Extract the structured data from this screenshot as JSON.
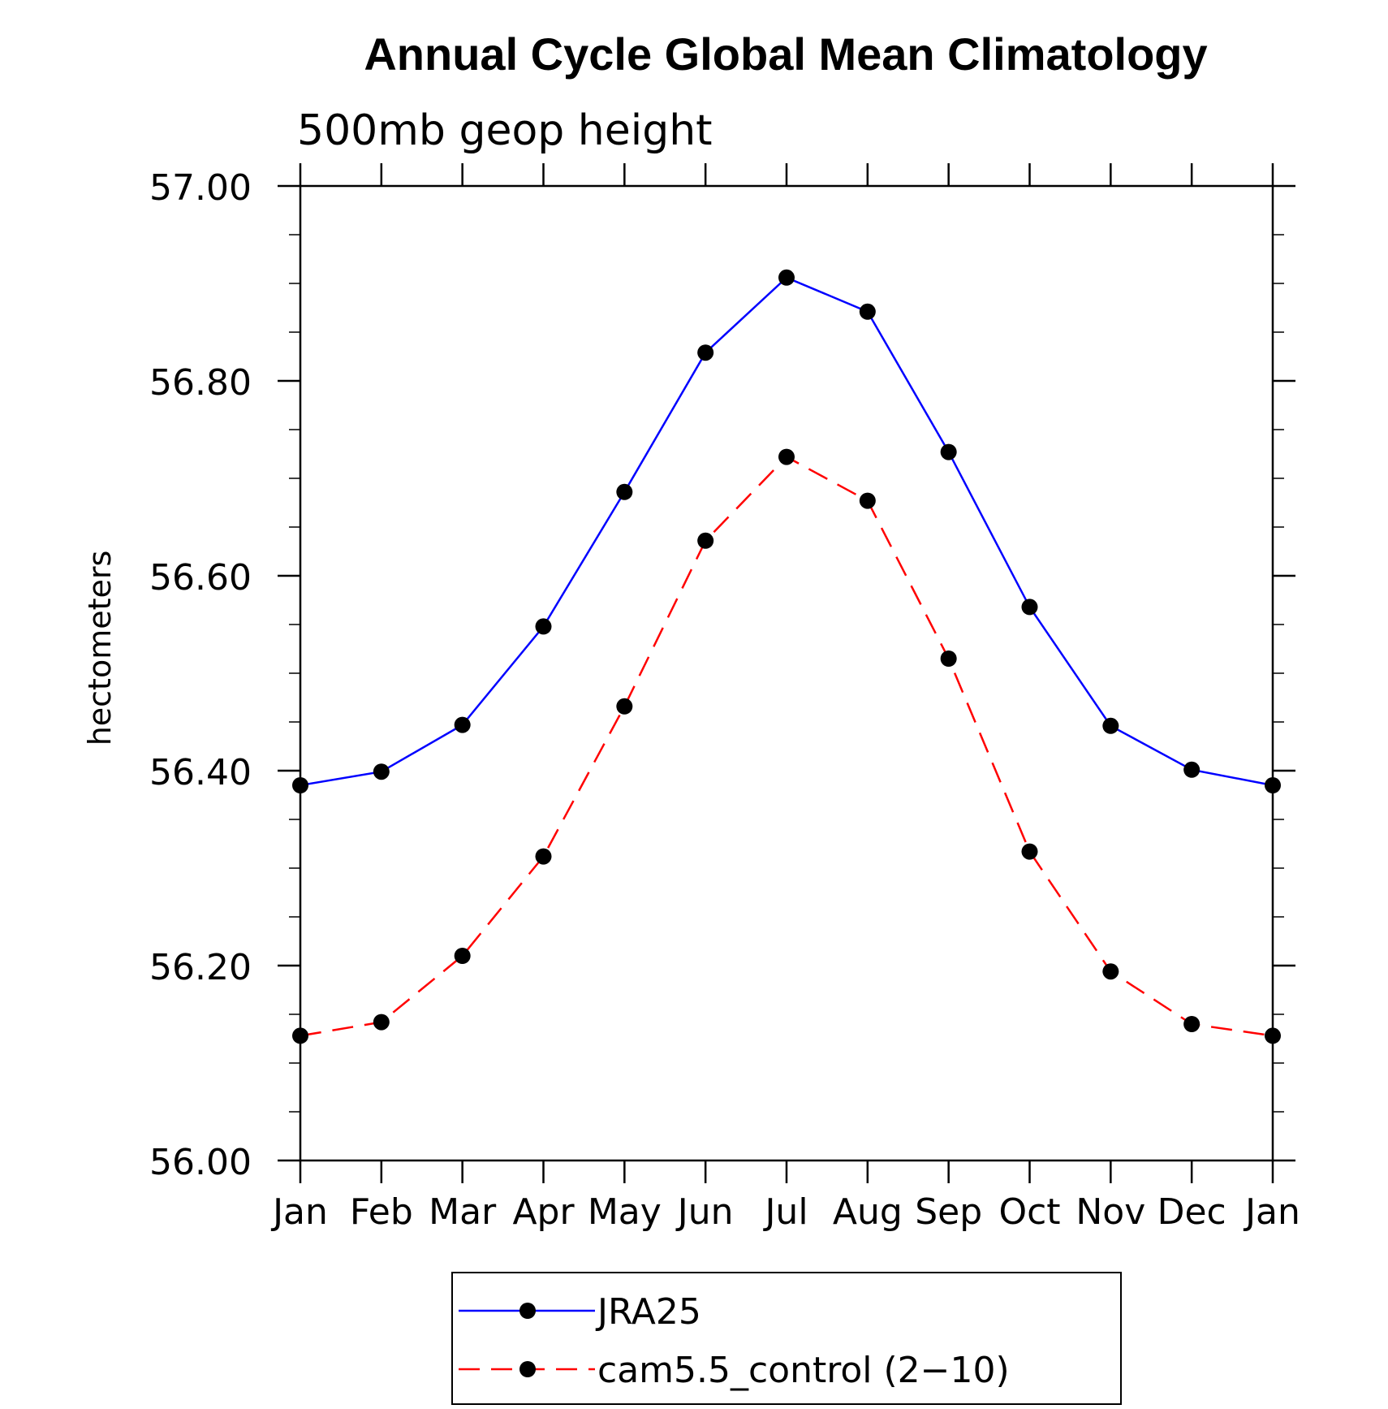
{
  "chart_data": {
    "type": "line",
    "title": "Annual Cycle Global Mean Climatology",
    "subtitle": "500mb geop height",
    "xlabel": "",
    "ylabel": "hectometers",
    "categories": [
      "Jan",
      "Feb",
      "Mar",
      "Apr",
      "May",
      "Jun",
      "Jul",
      "Aug",
      "Sep",
      "Oct",
      "Nov",
      "Dec",
      "Jan"
    ],
    "ylim": [
      56.0,
      57.0
    ],
    "yticks": [
      "56.00",
      "56.20",
      "56.40",
      "56.60",
      "56.80",
      "57.00"
    ],
    "yminor_step": 0.05,
    "grid": false,
    "legend_position": "bottom-center",
    "series": [
      {
        "name": "JRA25",
        "color": "#0000ff",
        "dash": "solid",
        "marker": "filled-circle",
        "values": [
          56.385,
          56.399,
          56.447,
          56.548,
          56.686,
          56.829,
          56.906,
          56.871,
          56.727,
          56.568,
          56.446,
          56.401,
          56.385
        ]
      },
      {
        "name": "cam5.5_control (2−10)",
        "color": "#ff0000",
        "dash": "dashed",
        "marker": "filled-circle",
        "values": [
          56.128,
          56.142,
          56.21,
          56.312,
          56.466,
          56.636,
          56.722,
          56.677,
          56.515,
          56.317,
          56.194,
          56.14,
          56.128
        ]
      }
    ]
  }
}
